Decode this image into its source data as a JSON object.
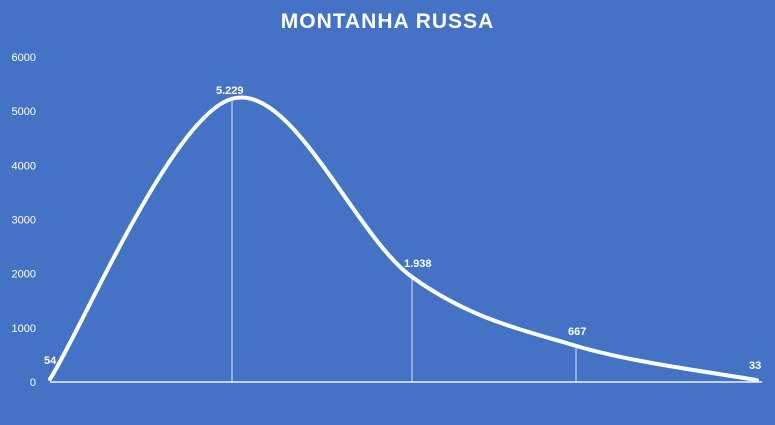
{
  "chart_data": {
    "type": "line",
    "title": "MONTANHA RUSSA",
    "x": [
      0,
      1,
      2,
      3,
      4
    ],
    "values": [
      54,
      5229,
      1938,
      667,
      33
    ],
    "data_labels": [
      "54",
      "5.229",
      "1.938",
      "667",
      "33"
    ],
    "yticks": [
      "0",
      "1000",
      "2000",
      "3000",
      "4000",
      "5000",
      "6000"
    ],
    "ylim": [
      0,
      6000
    ],
    "smooth": true,
    "grid": false,
    "legend": "none",
    "colors": {
      "background": "#4472c4",
      "line": "#ffffff",
      "text": "#ffffff"
    }
  }
}
